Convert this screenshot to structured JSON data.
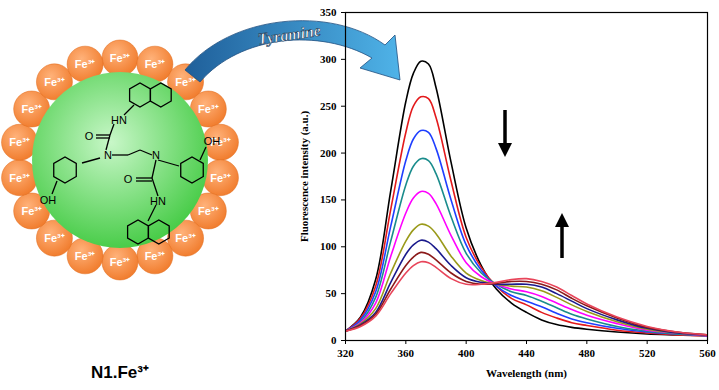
{
  "chart_data": {
    "type": "line",
    "xlabel": "Wavelength (nm)",
    "ylabel": "Fluorescence intensity (a.u.)",
    "x": [
      320,
      330,
      340,
      350,
      360,
      365,
      370,
      375,
      380,
      390,
      400,
      410,
      420,
      430,
      440,
      450,
      460,
      470,
      480,
      500,
      520,
      540,
      560
    ],
    "series": [
      {
        "color": "#000000",
        "values": [
          10,
          25,
          65,
          160,
          255,
          285,
          298,
          295,
          270,
          190,
          120,
          80,
          55,
          40,
          30,
          22,
          17,
          14,
          12,
          9,
          7,
          6,
          5
        ]
      },
      {
        "color": "#e31a1c",
        "values": [
          10,
          24,
          58,
          140,
          222,
          250,
          260,
          258,
          238,
          170,
          110,
          78,
          58,
          45,
          38,
          30,
          24,
          19,
          16,
          11,
          8,
          6,
          5
        ]
      },
      {
        "color": "#1f3fff",
        "values": [
          10,
          22,
          52,
          122,
          192,
          215,
          224,
          222,
          205,
          150,
          102,
          75,
          58,
          48,
          42,
          36,
          29,
          23,
          19,
          13,
          9,
          7,
          5
        ]
      },
      {
        "color": "#1a8c8c",
        "values": [
          10,
          20,
          46,
          106,
          166,
          186,
          194,
          192,
          178,
          132,
          93,
          72,
          60,
          52,
          48,
          42,
          35,
          28,
          23,
          15,
          10,
          7,
          5
        ]
      },
      {
        "color": "#ff00ff",
        "values": [
          10,
          19,
          40,
          90,
          136,
          152,
          159,
          157,
          146,
          112,
          83,
          68,
          60,
          55,
          52,
          47,
          40,
          33,
          27,
          18,
          11,
          8,
          5
        ]
      },
      {
        "color": "#9a9a1a",
        "values": [
          10,
          18,
          34,
          72,
          106,
          118,
          124,
          122,
          114,
          90,
          72,
          64,
          60,
          58,
          57,
          53,
          46,
          38,
          31,
          20,
          12,
          8,
          6
        ]
      },
      {
        "color": "#1a1a8c",
        "values": [
          10,
          17,
          30,
          62,
          92,
          102,
          107,
          105,
          98,
          80,
          67,
          62,
          60,
          60,
          60,
          57,
          50,
          42,
          34,
          22,
          13,
          8,
          6
        ]
      },
      {
        "color": "#8b1a1a",
        "values": [
          10,
          16,
          28,
          55,
          80,
          89,
          94,
          92,
          86,
          72,
          63,
          60,
          61,
          63,
          63,
          60,
          54,
          45,
          37,
          24,
          14,
          9,
          6
        ]
      },
      {
        "color": "#e8455a",
        "values": [
          10,
          15,
          26,
          50,
          72,
          80,
          84,
          83,
          78,
          66,
          60,
          60,
          62,
          65,
          66,
          63,
          57,
          48,
          39,
          25,
          15,
          9,
          6
        ]
      }
    ],
    "xlim": [
      320,
      560
    ],
    "xticks": [
      320,
      360,
      400,
      440,
      480,
      520,
      560
    ],
    "ylim": [
      0,
      350
    ],
    "yticks": [
      0,
      50,
      100,
      150,
      200,
      250,
      300,
      350
    ],
    "grid": false
  },
  "diagram": {
    "arrow_label": "Tyramine",
    "complex_label": "N1.Fe³⁺",
    "ion_label": "Fe³⁺",
    "ion_count": 18,
    "atom_labels": [
      "HN",
      "O",
      "N",
      "N",
      "OH",
      "OH",
      "O",
      "HN"
    ]
  }
}
